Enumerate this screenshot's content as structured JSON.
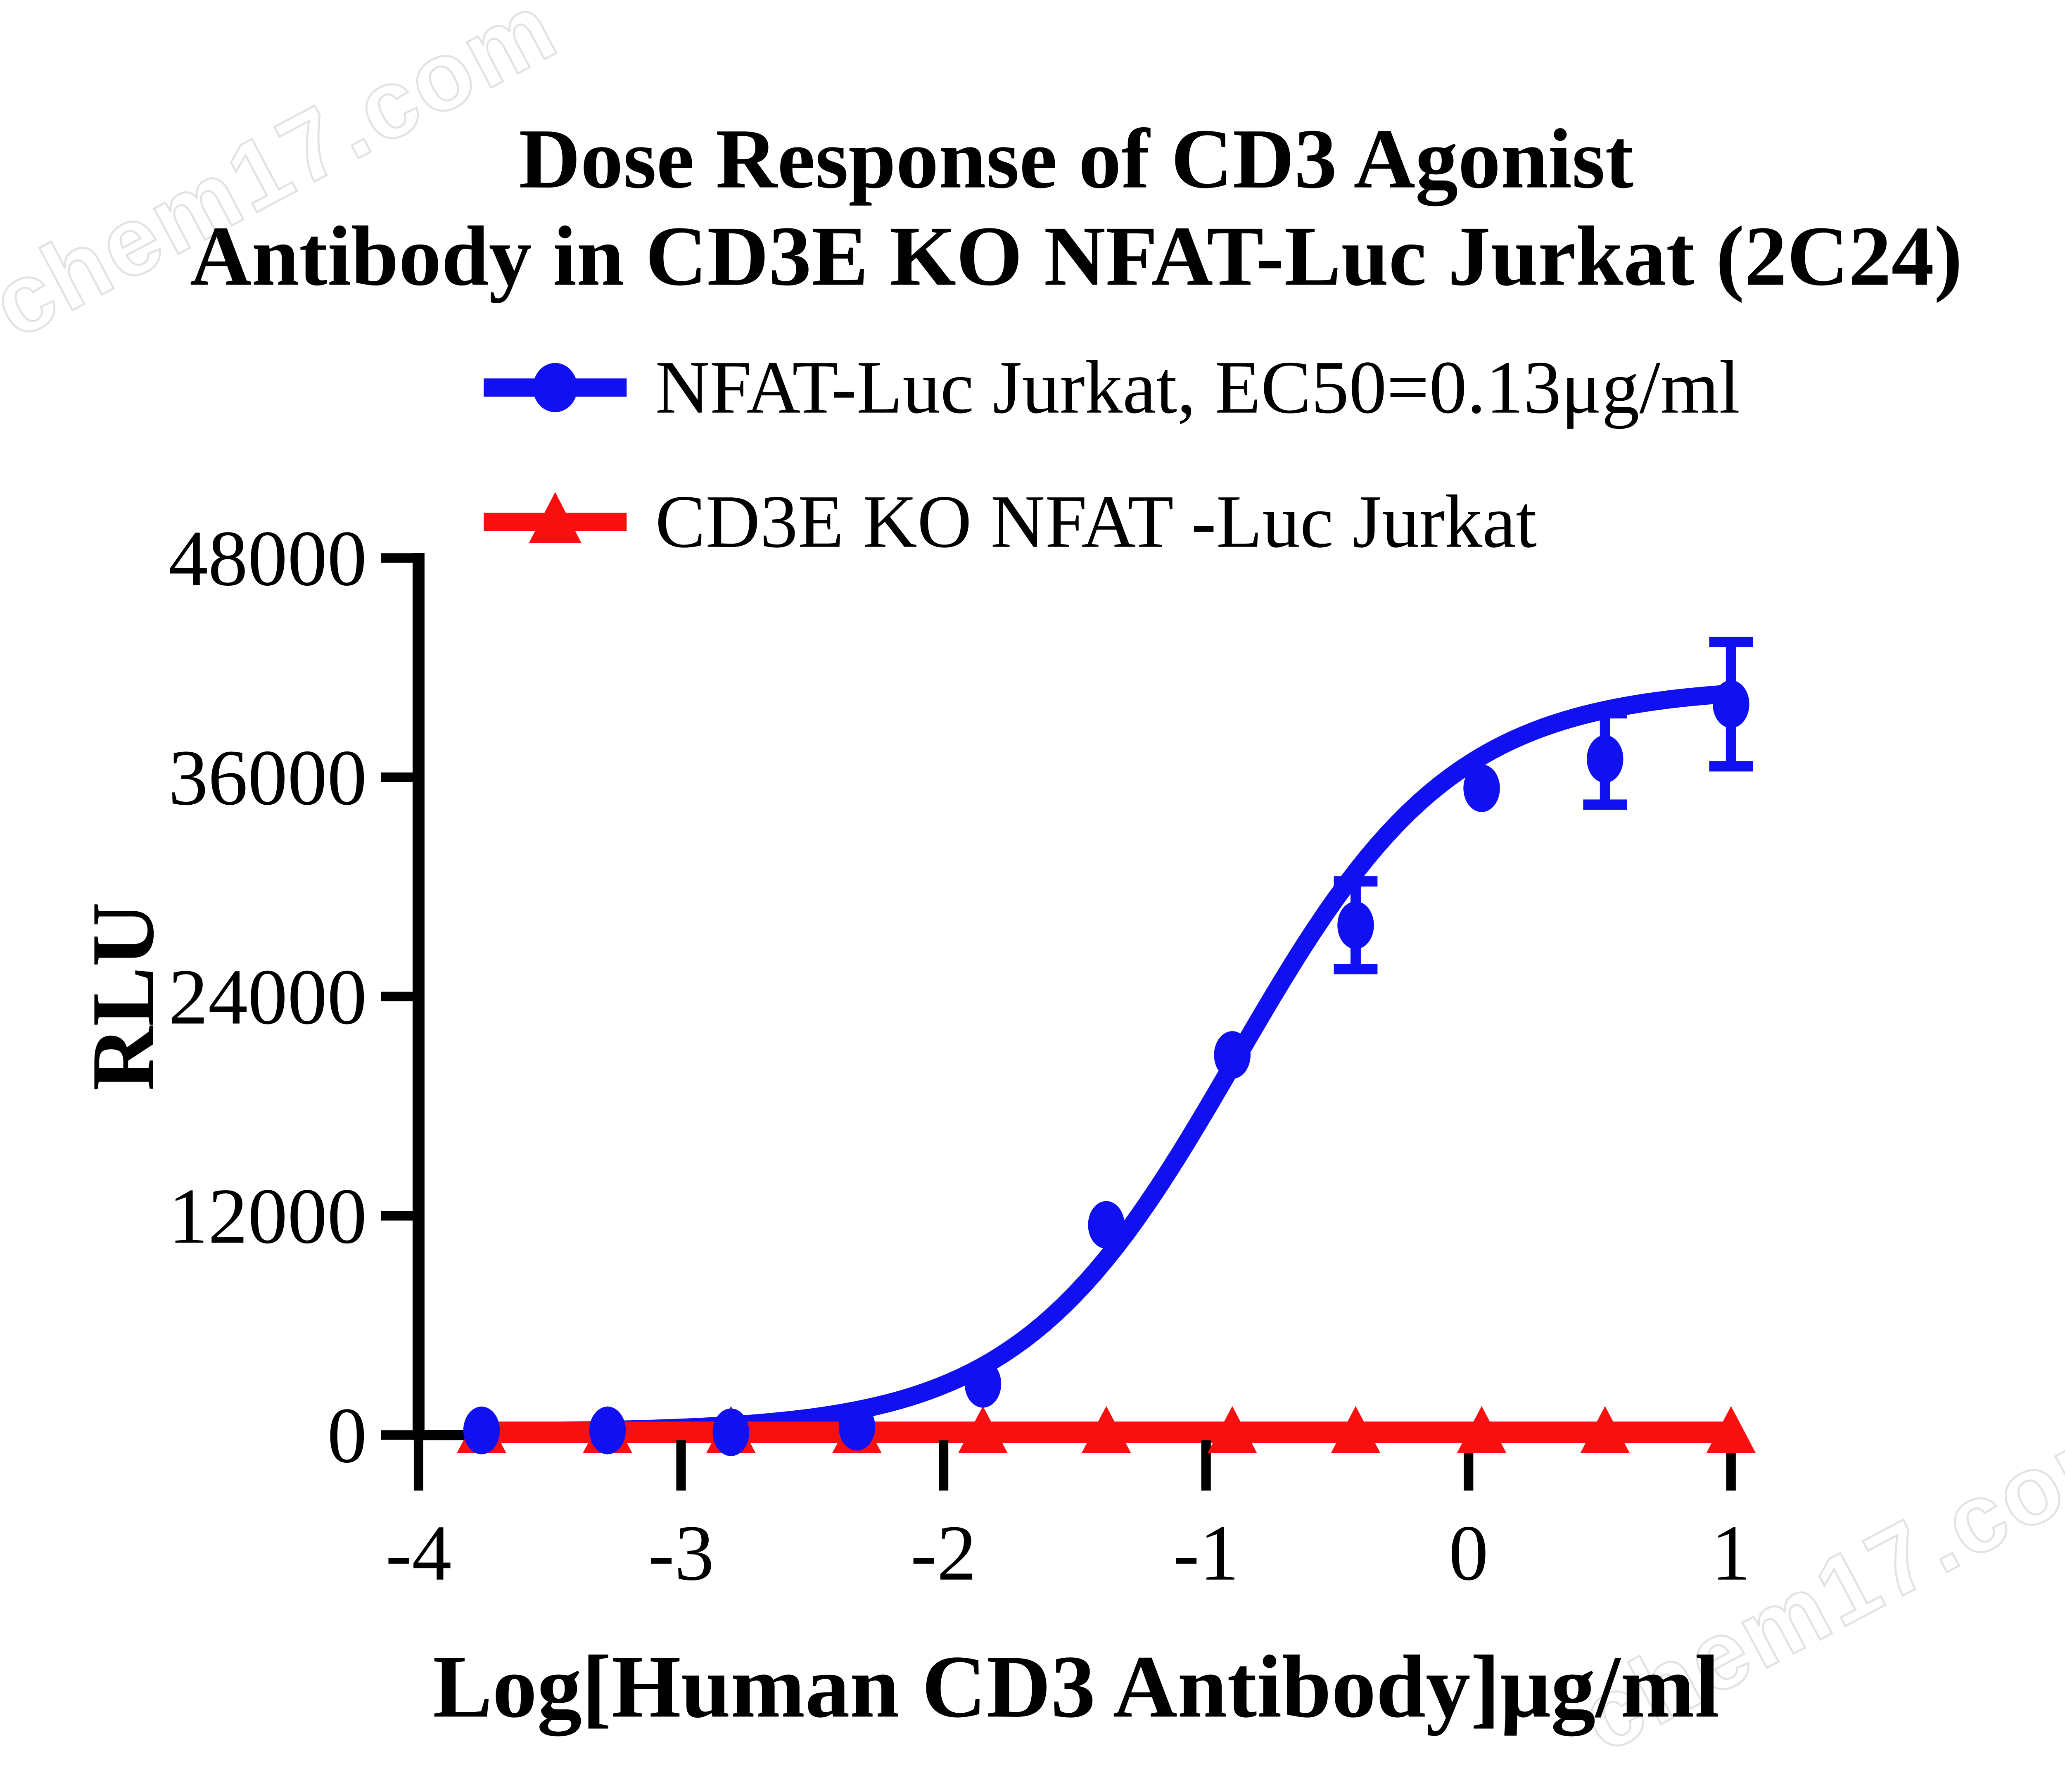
{
  "title": {
    "line1": "Dose Response of  CD3 Agonist",
    "line2": "Antibody in CD3E KO NFAT-Luc Jurkat (2C24)"
  },
  "watermark": {
    "text": "chem17.com"
  },
  "chart_data": {
    "type": "scatter",
    "title": "Dose Response of CD3 Agonist Antibody in CD3E KO NFAT-Luc Jurkat (2C24)",
    "xlabel": "Log[Human CD3 Antibody]μg/ml",
    "ylabel": "RLU",
    "xlim": [
      -4,
      1
    ],
    "ylim": [
      0,
      48000
    ],
    "x_ticks": [
      -4,
      -3,
      -2,
      -1,
      0,
      1
    ],
    "y_ticks": [
      0,
      12000,
      24000,
      36000,
      48000
    ],
    "grid": false,
    "legend_position": "top",
    "axis_color": "#000000",
    "series": [
      {
        "name": "NFAT-Luc Jurkat, EC50=0.13μg/ml",
        "marker": "circle",
        "color": "#1010F0",
        "x": [
          -3.76,
          -3.28,
          -2.81,
          -2.33,
          -1.85,
          -1.38,
          -0.9,
          -0.43,
          0.05,
          0.52,
          1.0
        ],
        "y": [
          250,
          250,
          150,
          450,
          2800,
          11500,
          20800,
          27900,
          35400,
          37000,
          40000
        ],
        "err": [
          0,
          0,
          0,
          0,
          0,
          0,
          0,
          2400,
          0,
          2500,
          3400
        ]
      },
      {
        "name": "CD3E KO NFAT -Luc Jurkat",
        "marker": "triangle",
        "color": "#F81010",
        "x": [
          -3.76,
          -3.28,
          -2.81,
          -2.33,
          -1.85,
          -1.38,
          -0.9,
          -0.43,
          0.05,
          0.52,
          1.0
        ],
        "y": [
          150,
          150,
          150,
          150,
          150,
          150,
          150,
          150,
          150,
          150,
          150
        ],
        "err": [
          0,
          0,
          0,
          0,
          0,
          0,
          0,
          0,
          0,
          0,
          0
        ]
      }
    ],
    "fit_curve": {
      "series": 0,
      "model": "4PL",
      "bottom": 150,
      "top": 41000,
      "logEC50": -0.886,
      "hill": 1.05,
      "x_start": -3.76,
      "x_end": 1.0,
      "ec50_annotation": "EC50=0.13μg/ml"
    }
  }
}
